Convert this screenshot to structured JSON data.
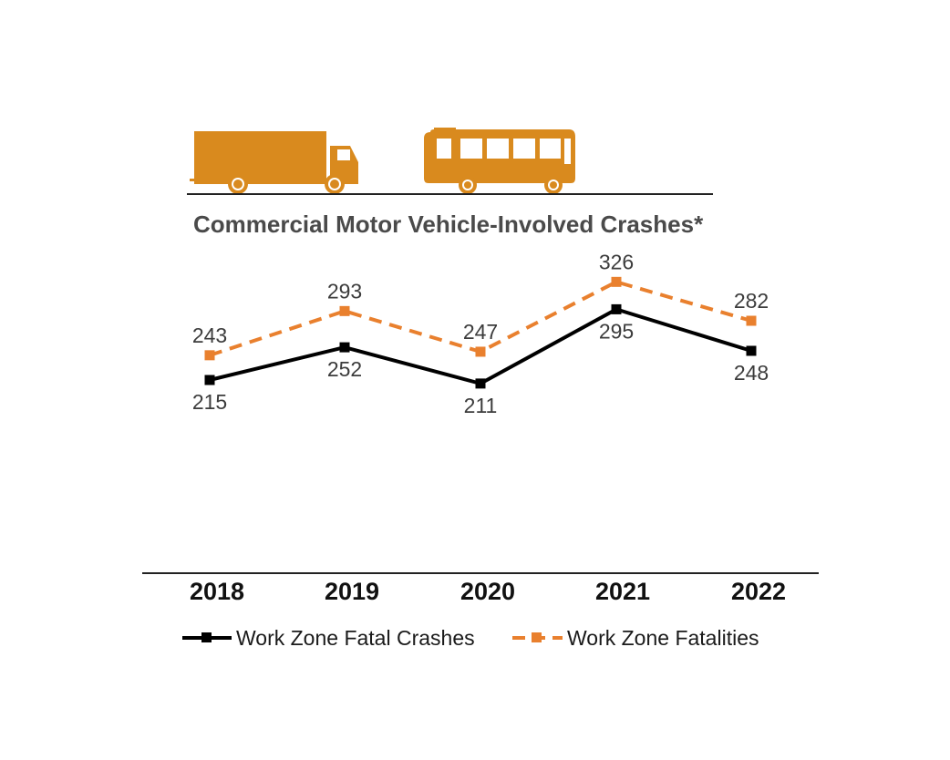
{
  "colors": {
    "vehicle": "#D98A1E",
    "fatalities": "#E9802E",
    "crashes": "#000000",
    "text": "#3c3c3c"
  },
  "icons": [
    "box-truck-icon",
    "bus-icon"
  ],
  "chart_data": {
    "type": "line",
    "title": "Commercial Motor Vehicle-Involved Crashes*",
    "xlabel": "",
    "ylabel": "",
    "categories": [
      "2018",
      "2019",
      "2020",
      "2021",
      "2022"
    ],
    "ylim": [
      100,
      350
    ],
    "grid": false,
    "legend_position": "bottom",
    "series": [
      {
        "name": "Work Zone Fatal Crashes",
        "values": [
          215,
          252,
          211,
          295,
          248
        ],
        "style": "solid"
      },
      {
        "name": "Work Zone Fatalities",
        "values": [
          243,
          293,
          247,
          326,
          282
        ],
        "style": "dashed"
      }
    ]
  }
}
